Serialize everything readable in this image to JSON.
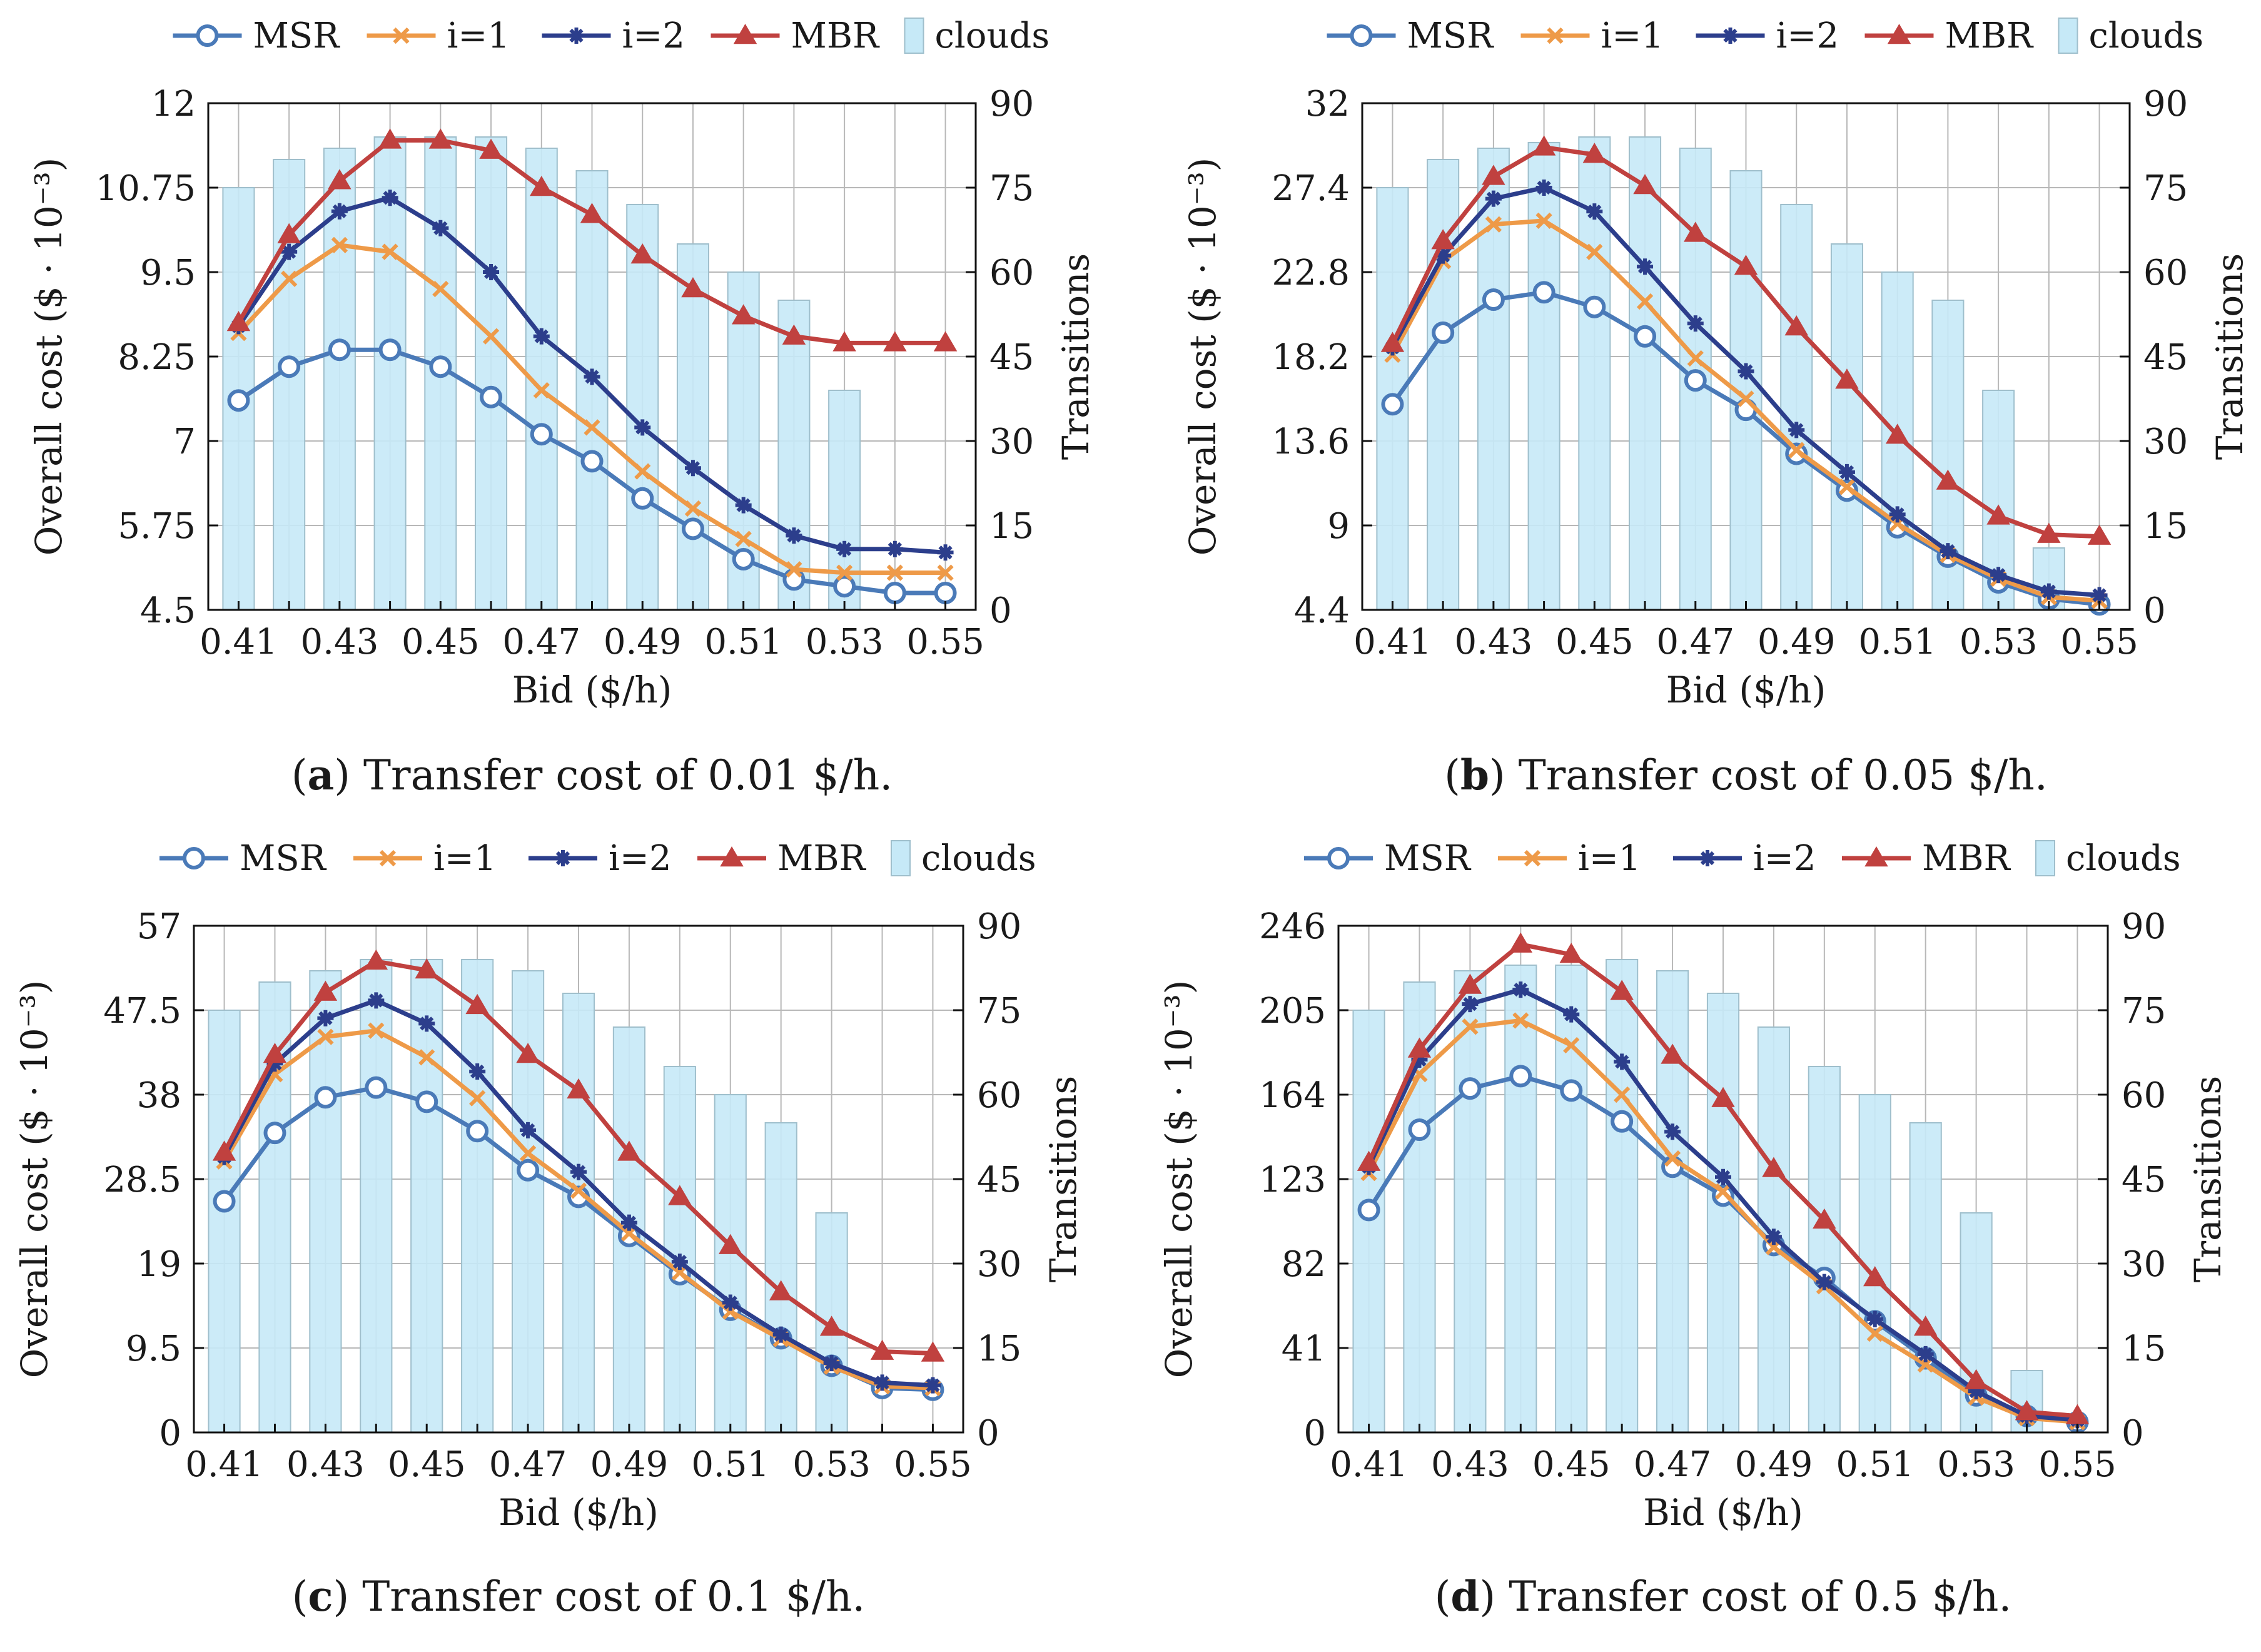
{
  "colors": {
    "MSR": "#4a7ab8",
    "i1": "#ee9a48",
    "i2": "#2c3e8c",
    "MBR": "#c0413f",
    "clouds_fill": "#c6e9f7",
    "clouds_stroke": "#9fbfcc",
    "grid": "#b8b8b8"
  },
  "legend": {
    "msr": "MSR",
    "i1": "i=1",
    "i2": "i=2",
    "mbr": "MBR",
    "clouds": "clouds"
  },
  "chart_data": [
    {
      "id": "a",
      "type": "line+bar",
      "caption_letter": "(a)",
      "caption_text": " Transfer cost of 0.01 $/h.",
      "xlabel": "Bid ($/h)",
      "ylabel": "Overall cost ($ · 10⁻³)",
      "y2label": "Transitions",
      "x": [
        0.41,
        0.42,
        0.43,
        0.44,
        0.45,
        0.46,
        0.47,
        0.48,
        0.49,
        0.5,
        0.51,
        0.52,
        0.53,
        0.54,
        0.55
      ],
      "xticks": [
        "0.41",
        "0.43",
        "0.45",
        "0.47",
        "0.49",
        "0.51",
        "0.53",
        "0.55"
      ],
      "ylim": [
        4.5,
        12
      ],
      "yticks": [
        "4.5",
        "5.75",
        "7",
        "8.25",
        "9.5",
        "10.75",
        "12"
      ],
      "y2lim": [
        0,
        90
      ],
      "y2ticks": [
        "0",
        "15",
        "30",
        "45",
        "60",
        "75",
        "90"
      ],
      "series": [
        {
          "name": "MSR",
          "values": [
            7.6,
            8.1,
            8.35,
            8.35,
            8.1,
            7.65,
            7.1,
            6.7,
            6.15,
            5.7,
            5.25,
            4.95,
            4.85,
            4.75,
            4.75
          ]
        },
        {
          "name": "i=1",
          "values": [
            8.6,
            9.4,
            9.9,
            9.8,
            9.25,
            8.55,
            7.75,
            7.2,
            6.55,
            6.0,
            5.55,
            5.1,
            5.05,
            5.05,
            5.05
          ]
        },
        {
          "name": "i=2",
          "values": [
            8.7,
            9.8,
            10.4,
            10.6,
            10.15,
            9.5,
            8.55,
            7.95,
            7.2,
            6.6,
            6.05,
            5.6,
            5.4,
            5.4,
            5.35
          ]
        },
        {
          "name": "MBR",
          "values": [
            8.75,
            10.05,
            10.85,
            11.45,
            11.45,
            11.3,
            10.75,
            10.35,
            9.75,
            9.25,
            8.85,
            8.55,
            8.45,
            8.45,
            8.45
          ]
        }
      ],
      "bars": {
        "name": "clouds",
        "values": [
          75,
          80,
          82,
          84,
          84,
          84,
          82,
          78,
          72,
          65,
          60,
          55,
          39,
          null,
          null
        ]
      }
    },
    {
      "id": "b",
      "type": "line+bar",
      "caption_letter": "(b)",
      "caption_text": " Transfer cost of 0.05 $/h.",
      "xlabel": "Bid ($/h)",
      "ylabel": "Overall cost ($ · 10⁻³)",
      "y2label": "Transitions",
      "x": [
        0.41,
        0.42,
        0.43,
        0.44,
        0.45,
        0.46,
        0.47,
        0.48,
        0.49,
        0.5,
        0.51,
        0.52,
        0.53,
        0.54,
        0.55
      ],
      "xticks": [
        "0.41",
        "0.43",
        "0.45",
        "0.47",
        "0.49",
        "0.51",
        "0.53",
        "0.55"
      ],
      "ylim": [
        4.4,
        32
      ],
      "yticks": [
        "4.4",
        "9",
        "13.6",
        "18.2",
        "22.8",
        "27.4",
        "32"
      ],
      "y2lim": [
        0,
        90
      ],
      "y2ticks": [
        "0",
        "15",
        "30",
        "45",
        "60",
        "75",
        "90"
      ],
      "series": [
        {
          "name": "MSR",
          "values": [
            15.6,
            19.5,
            21.3,
            21.7,
            20.9,
            19.3,
            16.9,
            15.3,
            12.9,
            10.9,
            8.9,
            7.3,
            5.9,
            5.0,
            4.7
          ]
        },
        {
          "name": "i=1",
          "values": [
            18.3,
            23.4,
            25.4,
            25.6,
            23.9,
            21.2,
            18.1,
            15.9,
            13.1,
            11.1,
            9.1,
            7.4,
            6.1,
            5.1,
            4.9
          ]
        },
        {
          "name": "i=2",
          "values": [
            18.7,
            23.7,
            26.8,
            27.4,
            26.1,
            23.1,
            20.0,
            17.4,
            14.2,
            11.9,
            9.6,
            7.6,
            6.3,
            5.4,
            5.2
          ]
        },
        {
          "name": "MBR",
          "values": [
            18.9,
            24.5,
            28.0,
            29.6,
            29.2,
            27.5,
            24.9,
            23.1,
            19.8,
            16.9,
            13.9,
            11.4,
            9.5,
            8.5,
            8.4
          ]
        }
      ],
      "bars": {
        "name": "clouds",
        "values": [
          75,
          80,
          82,
          83,
          84,
          84,
          82,
          78,
          72,
          65,
          60,
          55,
          39,
          11,
          null
        ]
      }
    },
    {
      "id": "c",
      "type": "line+bar",
      "caption_letter": "(c)",
      "caption_text": " Transfer cost of 0.1 $/h.",
      "xlabel": "Bid ($/h)",
      "ylabel": "Overall cost ($ · 10⁻³)",
      "y2label": "Transitions",
      "x": [
        0.41,
        0.42,
        0.43,
        0.44,
        0.45,
        0.46,
        0.47,
        0.48,
        0.49,
        0.5,
        0.51,
        0.52,
        0.53,
        0.54,
        0.55
      ],
      "xticks": [
        "0.41",
        "0.43",
        "0.45",
        "0.47",
        "0.49",
        "0.51",
        "0.53",
        "0.55"
      ],
      "ylim": [
        0,
        57
      ],
      "yticks": [
        "0",
        "9.5",
        "19",
        "28.5",
        "38",
        "47.5",
        "57"
      ],
      "y2lim": [
        0,
        90
      ],
      "y2ticks": [
        "0",
        "15",
        "30",
        "45",
        "60",
        "75",
        "90"
      ],
      "series": [
        {
          "name": "MSR",
          "values": [
            26.0,
            33.7,
            37.7,
            38.8,
            37.2,
            33.9,
            29.5,
            26.5,
            22.1,
            17.8,
            13.8,
            10.6,
            7.5,
            5.0,
            4.8
          ]
        },
        {
          "name": "i=1",
          "values": [
            30.5,
            40.3,
            44.5,
            45.2,
            42.2,
            37.6,
            31.4,
            27.2,
            22.4,
            18.0,
            13.6,
            10.5,
            7.4,
            5.2,
            5.0
          ]
        },
        {
          "name": "i=2",
          "values": [
            31.0,
            41.5,
            46.6,
            48.6,
            46.0,
            40.6,
            34.0,
            29.3,
            23.6,
            19.2,
            14.6,
            11.0,
            7.8,
            5.6,
            5.3
          ]
        },
        {
          "name": "MBR",
          "values": [
            31.5,
            42.5,
            49.5,
            53.0,
            52.0,
            48.0,
            42.5,
            38.5,
            31.5,
            26.5,
            21.0,
            15.8,
            11.8,
            9.1,
            8.9
          ]
        }
      ],
      "bars": {
        "name": "clouds",
        "values": [
          75,
          80,
          82,
          84,
          84,
          84,
          82,
          78,
          72,
          65,
          60,
          55,
          39,
          null,
          null
        ]
      }
    },
    {
      "id": "d",
      "type": "line+bar",
      "caption_letter": "(d)",
      "caption_text": " Transfer cost of 0.5 $/h.",
      "xlabel": "Bid ($/h)",
      "ylabel": "Overall cost ($ · 10⁻³)",
      "y2label": "Transitions",
      "x": [
        0.41,
        0.42,
        0.43,
        0.44,
        0.45,
        0.46,
        0.47,
        0.48,
        0.49,
        0.5,
        0.51,
        0.52,
        0.53,
        0.54,
        0.55
      ],
      "xticks": [
        "0.41",
        "0.43",
        "0.45",
        "0.47",
        "0.49",
        "0.51",
        "0.53",
        "0.55"
      ],
      "ylim": [
        0,
        246
      ],
      "yticks": [
        "0",
        "41",
        "82",
        "123",
        "164",
        "205",
        "246"
      ],
      "y2lim": [
        0,
        90
      ],
      "y2ticks": [
        "0",
        "15",
        "30",
        "45",
        "60",
        "75",
        "90"
      ],
      "series": [
        {
          "name": "MSR",
          "values": [
            108,
            147,
            167,
            173,
            166,
            151,
            129,
            115,
            91,
            75,
            54,
            36,
            18,
            8,
            5
          ]
        },
        {
          "name": "i=1",
          "values": [
            126,
            174,
            197,
            200,
            188,
            164,
            133,
            117,
            90,
            71,
            48,
            33,
            17,
            7,
            5
          ]
        },
        {
          "name": "i=2",
          "values": [
            129,
            181,
            208,
            215,
            203,
            180,
            146,
            124,
            95,
            73,
            55,
            38,
            20,
            8,
            6
          ]
        },
        {
          "name": "MBR",
          "values": [
            131,
            186,
            217,
            237,
            232,
            214,
            183,
            162,
            128,
            103,
            75,
            51,
            25,
            10,
            8
          ]
        }
      ],
      "bars": {
        "name": "clouds",
        "values": [
          75,
          80,
          82,
          83,
          83,
          84,
          82,
          78,
          72,
          65,
          60,
          55,
          39,
          11,
          null
        ]
      }
    }
  ]
}
